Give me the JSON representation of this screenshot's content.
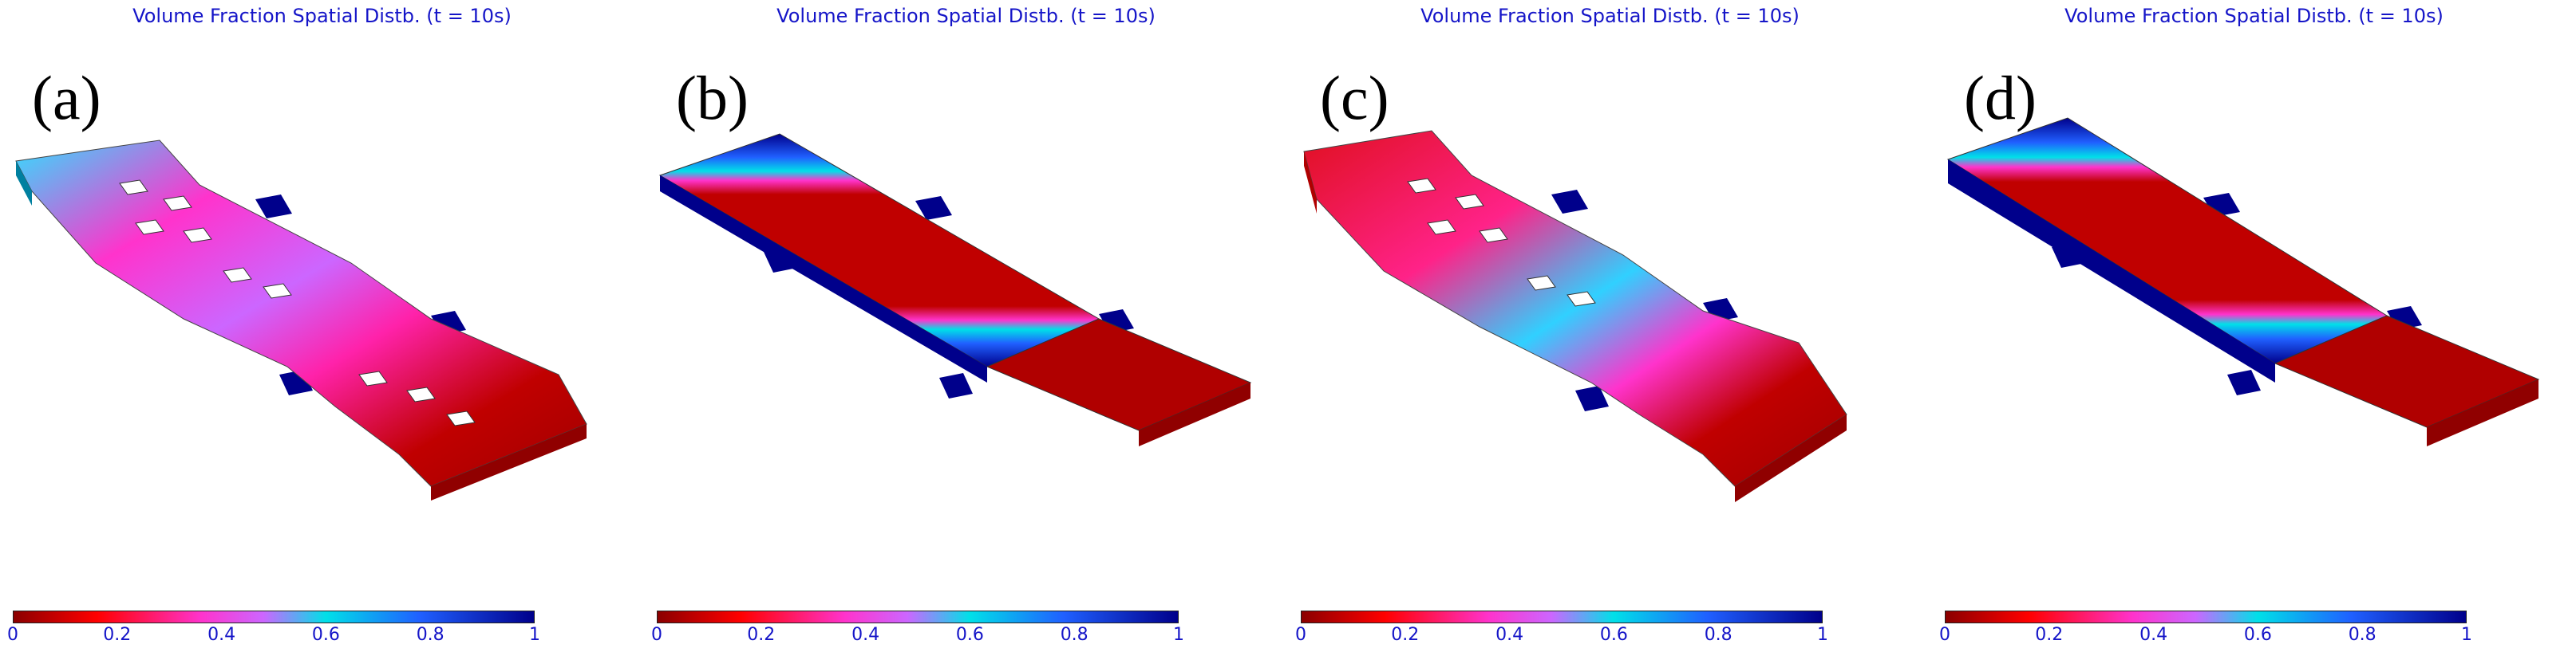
{
  "panels": [
    {
      "title": "Volume Fraction Spatial Distb. (t = 10s)",
      "label": "(a)"
    },
    {
      "title": "Volume Fraction Spatial Distb. (t = 10s)",
      "label": "(b)"
    },
    {
      "title": "Volume Fraction Spatial Distb. (t = 10s)",
      "label": "(c)"
    },
    {
      "title": "Volume Fraction Spatial Distb. (t = 10s)",
      "label": "(d)"
    }
  ],
  "colorbar": {
    "ticks": [
      "0",
      "0.2",
      "0.4",
      "0.6",
      "0.8",
      "1"
    ],
    "colors": [
      "#8b0000",
      "#ff0000",
      "#ff33cc",
      "#cc66ff",
      "#00e0e8",
      "#2060ff",
      "#00008b"
    ]
  }
}
